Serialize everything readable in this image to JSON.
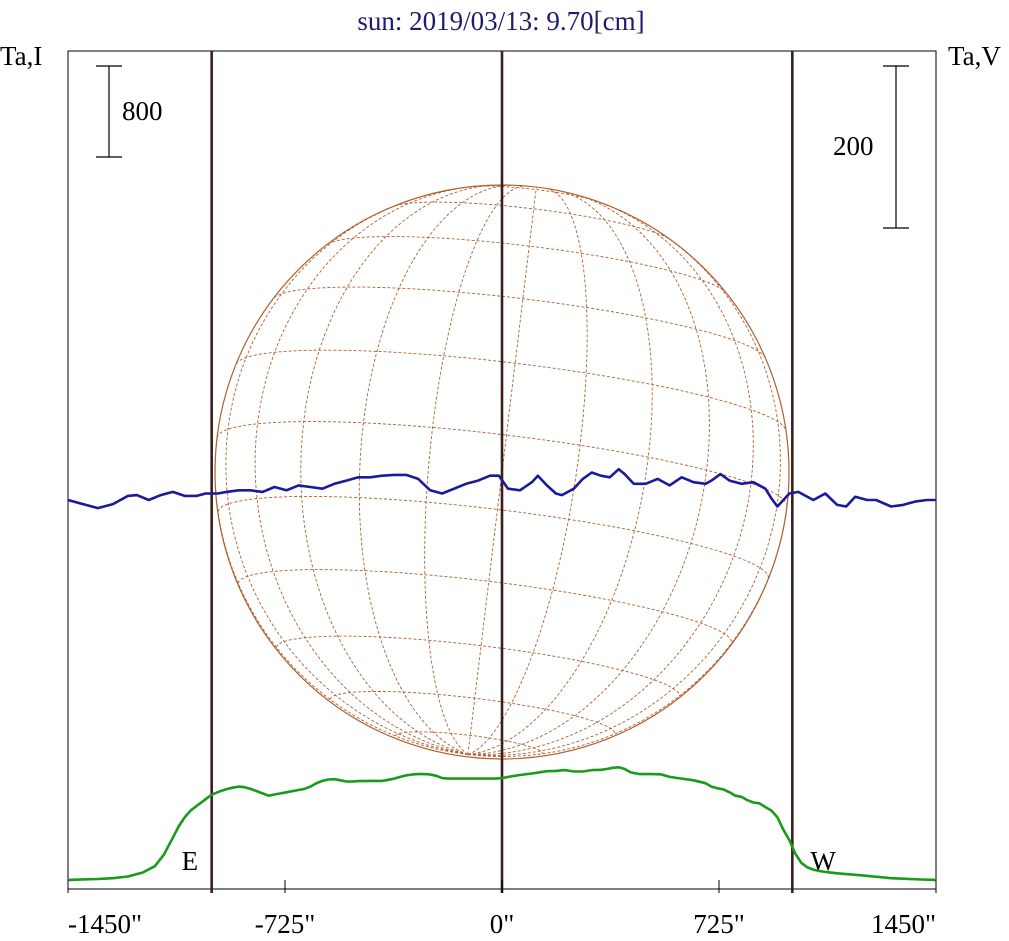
{
  "chart_data": {
    "type": "line",
    "title": "sun: 2019/03/13: 9.70[cm]",
    "left_axis_label": "Ta,I",
    "right_axis_label": "Ta,V",
    "scale_left": {
      "label": "800",
      "value": 800
    },
    "scale_right": {
      "label": "200",
      "value": 200
    },
    "xlim": [
      -1450,
      1450
    ],
    "x_ticks": [
      {
        "value": -1450,
        "label": "-1450\""
      },
      {
        "value": -725,
        "label": "-725\""
      },
      {
        "value": 0,
        "label": "0\""
      },
      {
        "value": 725,
        "label": "725\""
      },
      {
        "value": 1450,
        "label": "1450\""
      }
    ],
    "limb_markers": [
      {
        "x": -970,
        "label": "E"
      },
      {
        "x": 0,
        "label": ""
      },
      {
        "x": 970,
        "label": "W"
      }
    ],
    "solar_disk": {
      "radius_arcsec": 960,
      "grid": "heliographic"
    },
    "series": [
      {
        "name": "Ta,I",
        "color": "#1a9a1a",
        "axis": "left",
        "unit_pixels_per_800": 91,
        "points": [
          [
            -1450,
            10
          ],
          [
            -1400,
            14
          ],
          [
            -1350,
            18
          ],
          [
            -1300,
            25
          ],
          [
            -1250,
            40
          ],
          [
            -1200,
            75
          ],
          [
            -1160,
            130
          ],
          [
            -1130,
            230
          ],
          [
            -1100,
            380
          ],
          [
            -1080,
            480
          ],
          [
            -1060,
            560
          ],
          [
            -1040,
            620
          ],
          [
            -1020,
            660
          ],
          [
            -1000,
            700
          ],
          [
            -980,
            740
          ],
          [
            -960,
            770
          ],
          [
            -940,
            790
          ],
          [
            -920,
            808
          ],
          [
            -900,
            820
          ],
          [
            -880,
            830
          ],
          [
            -860,
            825
          ],
          [
            -840,
            810
          ],
          [
            -820,
            790
          ],
          [
            -800,
            770
          ],
          [
            -780,
            750
          ],
          [
            -760,
            760
          ],
          [
            -740,
            770
          ],
          [
            -720,
            780
          ],
          [
            -700,
            790
          ],
          [
            -680,
            800
          ],
          [
            -660,
            810
          ],
          [
            -640,
            830
          ],
          [
            -620,
            860
          ],
          [
            -600,
            880
          ],
          [
            -580,
            892
          ],
          [
            -560,
            895
          ],
          [
            -540,
            885
          ],
          [
            -520,
            875
          ],
          [
            -500,
            875
          ],
          [
            -480,
            878
          ],
          [
            -460,
            878
          ],
          [
            -440,
            880
          ],
          [
            -420,
            880
          ],
          [
            -400,
            880
          ],
          [
            -380,
            890
          ],
          [
            -360,
            900
          ],
          [
            -340,
            915
          ],
          [
            -320,
            928
          ],
          [
            -300,
            936
          ],
          [
            -280,
            940
          ],
          [
            -260,
            940
          ],
          [
            -240,
            936
          ],
          [
            -220,
            925
          ],
          [
            -200,
            905
          ],
          [
            -180,
            900
          ],
          [
            -150,
            900
          ],
          [
            -100,
            900
          ],
          [
            -60,
            900
          ],
          [
            -20,
            900
          ],
          [
            0,
            905
          ],
          [
            30,
            920
          ],
          [
            60,
            932
          ],
          [
            100,
            945
          ],
          [
            150,
            965
          ],
          [
            180,
            968
          ],
          [
            210,
            975
          ],
          [
            240,
            963
          ],
          [
            270,
            963
          ],
          [
            300,
            975
          ],
          [
            330,
            978
          ],
          [
            350,
            985
          ],
          [
            370,
            995
          ],
          [
            390,
            1000
          ],
          [
            410,
            985
          ],
          [
            430,
            955
          ],
          [
            460,
            940
          ],
          [
            500,
            940
          ],
          [
            530,
            938
          ],
          [
            560,
            915
          ],
          [
            600,
            900
          ],
          [
            640,
            885
          ],
          [
            680,
            860
          ],
          [
            700,
            830
          ],
          [
            720,
            815
          ],
          [
            740,
            805
          ],
          [
            760,
            780
          ],
          [
            780,
            750
          ],
          [
            800,
            740
          ],
          [
            820,
            710
          ],
          [
            840,
            690
          ],
          [
            860,
            683
          ],
          [
            880,
            650
          ],
          [
            900,
            620
          ],
          [
            920,
            560
          ],
          [
            940,
            450
          ],
          [
            960,
            360
          ],
          [
            980,
            240
          ],
          [
            1000,
            160
          ],
          [
            1020,
            120
          ],
          [
            1040,
            100
          ],
          [
            1060,
            88
          ],
          [
            1080,
            80
          ],
          [
            1120,
            68
          ],
          [
            1200,
            50
          ],
          [
            1300,
            25
          ],
          [
            1400,
            13
          ],
          [
            1450,
            10
          ]
        ]
      },
      {
        "name": "Ta,V",
        "color": "#1a1a9a",
        "axis": "right",
        "unit_pixels_per_200": 162,
        "baseline_offset": 0,
        "points": [
          [
            -1450,
            0
          ],
          [
            -1400,
            -5
          ],
          [
            -1350,
            -10
          ],
          [
            -1300,
            -5
          ],
          [
            -1250,
            5
          ],
          [
            -1220,
            6
          ],
          [
            -1180,
            0
          ],
          [
            -1140,
            6
          ],
          [
            -1100,
            10
          ],
          [
            -1060,
            5
          ],
          [
            -1020,
            5
          ],
          [
            -990,
            8
          ],
          [
            -970,
            8
          ],
          [
            -950,
            8
          ],
          [
            -920,
            10
          ],
          [
            -880,
            12
          ],
          [
            -840,
            12
          ],
          [
            -800,
            10
          ],
          [
            -760,
            16
          ],
          [
            -720,
            12
          ],
          [
            -680,
            18
          ],
          [
            -640,
            16
          ],
          [
            -600,
            14
          ],
          [
            -560,
            20
          ],
          [
            -520,
            24
          ],
          [
            -480,
            28
          ],
          [
            -440,
            28
          ],
          [
            -400,
            30
          ],
          [
            -360,
            31
          ],
          [
            -320,
            31
          ],
          [
            -280,
            26
          ],
          [
            -240,
            12
          ],
          [
            -200,
            8
          ],
          [
            -160,
            14
          ],
          [
            -120,
            20
          ],
          [
            -80,
            24
          ],
          [
            -40,
            30
          ],
          [
            -10,
            30
          ],
          [
            20,
            14
          ],
          [
            60,
            12
          ],
          [
            100,
            22
          ],
          [
            120,
            30
          ],
          [
            150,
            18
          ],
          [
            180,
            8
          ],
          [
            200,
            6
          ],
          [
            240,
            14
          ],
          [
            270,
            26
          ],
          [
            300,
            34
          ],
          [
            330,
            30
          ],
          [
            360,
            28
          ],
          [
            390,
            38
          ],
          [
            410,
            32
          ],
          [
            440,
            20
          ],
          [
            480,
            20
          ],
          [
            520,
            26
          ],
          [
            560,
            18
          ],
          [
            600,
            28
          ],
          [
            640,
            22
          ],
          [
            680,
            20
          ],
          [
            700,
            24
          ],
          [
            730,
            32
          ],
          [
            760,
            24
          ],
          [
            800,
            20
          ],
          [
            840,
            22
          ],
          [
            880,
            14
          ],
          [
            900,
            2
          ],
          [
            920,
            -8
          ],
          [
            940,
            0
          ],
          [
            960,
            8
          ],
          [
            990,
            10
          ],
          [
            1010,
            6
          ],
          [
            1040,
            0
          ],
          [
            1080,
            8
          ],
          [
            1120,
            -6
          ],
          [
            1150,
            -8
          ],
          [
            1180,
            4
          ],
          [
            1220,
            0
          ],
          [
            1250,
            0
          ],
          [
            1300,
            -8
          ],
          [
            1340,
            -6
          ],
          [
            1380,
            -2
          ],
          [
            1420,
            0
          ],
          [
            1450,
            0
          ]
        ]
      }
    ]
  }
}
